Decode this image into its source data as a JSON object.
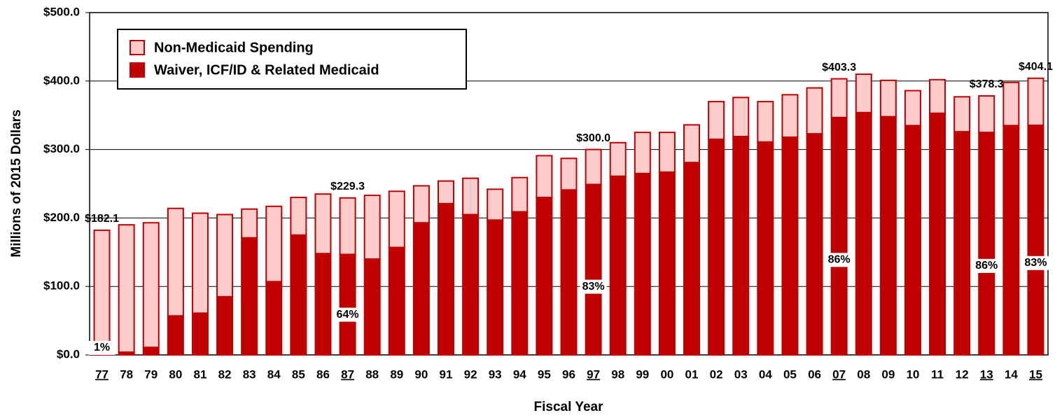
{
  "chart_data": {
    "type": "stacked-bar",
    "y_label": "Millions of 2015 Dollars",
    "x_label": "Fiscal Year",
    "categories": [
      "77",
      "78",
      "79",
      "80",
      "81",
      "82",
      "83",
      "84",
      "85",
      "86",
      "87",
      "88",
      "89",
      "90",
      "91",
      "92",
      "93",
      "94",
      "95",
      "96",
      "97",
      "98",
      "99",
      "00",
      "01",
      "02",
      "03",
      "04",
      "05",
      "06",
      "07",
      "08",
      "09",
      "10",
      "11",
      "12",
      "13",
      "14",
      "15"
    ],
    "series": [
      {
        "name": "Waiver, ICF/ID & Related Medicaid",
        "color": "#c00000",
        "values": [
          1.8,
          4,
          11,
          57,
          61,
          85,
          171,
          107,
          175,
          148,
          146.8,
          140,
          157,
          193,
          221,
          205,
          197,
          209,
          230,
          241,
          249,
          261,
          265,
          267,
          281,
          315,
          319,
          311,
          318,
          323,
          346.8,
          354,
          348,
          335,
          353,
          326,
          325,
          335,
          335.4
        ]
      },
      {
        "name": "Non-Medicaid Spending",
        "color": "#ffcccc",
        "values": [
          180.3,
          186,
          182,
          157,
          146,
          120,
          42,
          110,
          55,
          87,
          82.5,
          93,
          82,
          54,
          33,
          53,
          45,
          50,
          61,
          46,
          51,
          49,
          60,
          58,
          55,
          55,
          57,
          59,
          62,
          67,
          56.5,
          56,
          53,
          51,
          49,
          51,
          53.3,
          63,
          68.7
        ]
      }
    ],
    "ylim": [
      0,
      500
    ],
    "yticks": [
      {
        "value": 0,
        "label": "$0.0"
      },
      {
        "value": 100,
        "label": "$100.0"
      },
      {
        "value": 200,
        "label": "$200.0"
      },
      {
        "value": 300,
        "label": "$300.0"
      },
      {
        "value": 400,
        "label": "$400.0"
      },
      {
        "value": 500,
        "label": "$500.0"
      }
    ],
    "grid": true,
    "legend": "top-left",
    "total_labels": [
      {
        "category": "77",
        "text": "$182.1"
      },
      {
        "category": "87",
        "text": "$229.3"
      },
      {
        "category": "97",
        "text": "$300.0"
      },
      {
        "category": "07",
        "text": "$403.3"
      },
      {
        "category": "13",
        "text": "$378.3"
      },
      {
        "category": "15",
        "text": "$404.1"
      }
    ],
    "share_labels": [
      {
        "category": "77",
        "text": "1%"
      },
      {
        "category": "87",
        "text": "64%"
      },
      {
        "category": "97",
        "text": "83%"
      },
      {
        "category": "07",
        "text": "86%"
      },
      {
        "category": "13",
        "text": "86%"
      },
      {
        "category": "15",
        "text": "83%"
      }
    ]
  }
}
